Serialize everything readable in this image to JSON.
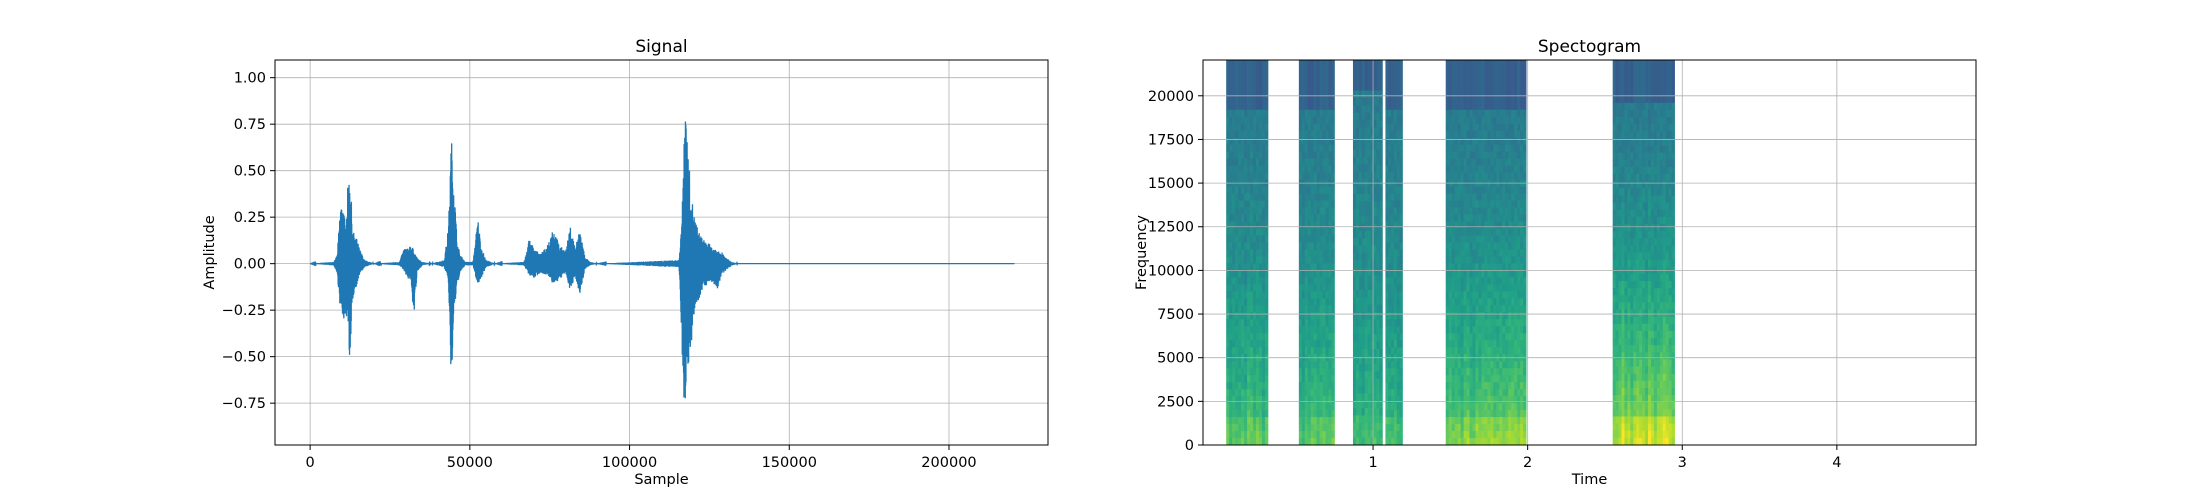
{
  "chart_data": [
    {
      "type": "line",
      "title": "Signal",
      "xlabel": "Sample",
      "ylabel": "Amplitude",
      "xlim": [
        -11000,
        231000
      ],
      "ylim": [
        -0.975,
        1.095
      ],
      "grid": true,
      "line_color": "#1f77b4",
      "x_ticks": [
        0,
        50000,
        100000,
        150000,
        200000
      ],
      "x_tick_labels": [
        "0",
        "50000",
        "100000",
        "150000",
        "200000"
      ],
      "y_ticks": [
        -0.75,
        -0.5,
        -0.25,
        0.0,
        0.25,
        0.5,
        0.75,
        1.0
      ],
      "y_tick_labels": [
        "−0.75",
        "−0.50",
        "−0.25",
        "0.00",
        "0.25",
        "0.50",
        "0.75",
        "1.00"
      ],
      "sample_range": [
        0,
        220500
      ],
      "envelope": [
        {
          "x": 0,
          "max": 0.0,
          "min": 0.0
        },
        {
          "x": 7500,
          "max": 0.01,
          "min": -0.01
        },
        {
          "x": 8500,
          "max": 0.05,
          "min": -0.06
        },
        {
          "x": 9500,
          "max": 0.33,
          "min": -0.26
        },
        {
          "x": 10300,
          "max": 0.32,
          "min": -0.32
        },
        {
          "x": 11000,
          "max": 0.2,
          "min": -0.28
        },
        {
          "x": 11800,
          "max": 0.42,
          "min": -0.3
        },
        {
          "x": 12500,
          "max": 0.5,
          "min": -0.57
        },
        {
          "x": 13300,
          "max": 0.18,
          "min": -0.2
        },
        {
          "x": 14500,
          "max": 0.14,
          "min": -0.12
        },
        {
          "x": 15500,
          "max": 0.08,
          "min": -0.06
        },
        {
          "x": 17000,
          "max": 0.02,
          "min": -0.02
        },
        {
          "x": 20000,
          "max": 0.0,
          "min": 0.0
        },
        {
          "x": 28000,
          "max": 0.01,
          "min": -0.01
        },
        {
          "x": 29500,
          "max": 0.09,
          "min": -0.04
        },
        {
          "x": 30500,
          "max": 0.08,
          "min": -0.08
        },
        {
          "x": 31500,
          "max": 0.11,
          "min": -0.09
        },
        {
          "x": 32500,
          "max": 0.07,
          "min": -0.29
        },
        {
          "x": 33500,
          "max": 0.03,
          "min": -0.05
        },
        {
          "x": 35000,
          "max": 0.01,
          "min": -0.01
        },
        {
          "x": 38000,
          "max": 0.0,
          "min": 0.0
        },
        {
          "x": 42000,
          "max": 0.02,
          "min": -0.02
        },
        {
          "x": 43300,
          "max": 0.2,
          "min": -0.1
        },
        {
          "x": 44200,
          "max": 0.69,
          "min": -0.69
        },
        {
          "x": 45000,
          "max": 0.46,
          "min": -0.29
        },
        {
          "x": 46000,
          "max": 0.12,
          "min": -0.12
        },
        {
          "x": 47000,
          "max": 0.05,
          "min": -0.05
        },
        {
          "x": 48500,
          "max": 0.01,
          "min": -0.01
        },
        {
          "x": 51000,
          "max": 0.01,
          "min": -0.01
        },
        {
          "x": 52500,
          "max": 0.25,
          "min": -0.12
        },
        {
          "x": 53500,
          "max": 0.1,
          "min": -0.08
        },
        {
          "x": 55000,
          "max": 0.02,
          "min": -0.02
        },
        {
          "x": 58000,
          "max": 0.0,
          "min": 0.0
        },
        {
          "x": 67000,
          "max": 0.01,
          "min": -0.01
        },
        {
          "x": 68500,
          "max": 0.13,
          "min": -0.06
        },
        {
          "x": 70000,
          "max": 0.09,
          "min": -0.08
        },
        {
          "x": 72000,
          "max": 0.05,
          "min": -0.05
        },
        {
          "x": 74000,
          "max": 0.09,
          "min": -0.06
        },
        {
          "x": 76000,
          "max": 0.2,
          "min": -0.11
        },
        {
          "x": 78000,
          "max": 0.1,
          "min": -0.09
        },
        {
          "x": 80000,
          "max": 0.07,
          "min": -0.05
        },
        {
          "x": 81500,
          "max": 0.2,
          "min": -0.15
        },
        {
          "x": 83000,
          "max": 0.09,
          "min": -0.07
        },
        {
          "x": 84500,
          "max": 0.19,
          "min": -0.17
        },
        {
          "x": 86000,
          "max": 0.04,
          "min": -0.03
        },
        {
          "x": 87500,
          "max": 0.01,
          "min": -0.01
        },
        {
          "x": 90000,
          "max": 0.0,
          "min": 0.0
        },
        {
          "x": 115500,
          "max": 0.02,
          "min": -0.02
        },
        {
          "x": 116500,
          "max": 0.3,
          "min": -0.5
        },
        {
          "x": 117400,
          "max": 1.0,
          "min": -0.88
        },
        {
          "x": 118200,
          "max": 0.62,
          "min": -0.6
        },
        {
          "x": 119000,
          "max": 0.45,
          "min": -0.5
        },
        {
          "x": 120000,
          "max": 0.28,
          "min": -0.3
        },
        {
          "x": 121500,
          "max": 0.18,
          "min": -0.2
        },
        {
          "x": 123000,
          "max": 0.13,
          "min": -0.13
        },
        {
          "x": 124500,
          "max": 0.12,
          "min": -0.11
        },
        {
          "x": 126000,
          "max": 0.08,
          "min": -0.1
        },
        {
          "x": 127500,
          "max": 0.07,
          "min": -0.14
        },
        {
          "x": 129000,
          "max": 0.06,
          "min": -0.06
        },
        {
          "x": 130500,
          "max": 0.03,
          "min": -0.03
        },
        {
          "x": 132000,
          "max": 0.01,
          "min": -0.01
        },
        {
          "x": 134000,
          "max": 0.0,
          "min": 0.0
        },
        {
          "x": 220500,
          "max": 0.0,
          "min": 0.0
        }
      ]
    },
    {
      "type": "heatmap",
      "title": "Spectogram",
      "xlabel": "Time",
      "ylabel": "Frequency",
      "xlim": [
        -0.1,
        4.9
      ],
      "ylim": [
        0,
        22050
      ],
      "grid": true,
      "colormap": "viridis",
      "x_ticks": [
        1,
        2,
        3,
        4
      ],
      "x_tick_labels": [
        "1",
        "2",
        "3",
        "4"
      ],
      "y_ticks": [
        0,
        2500,
        5000,
        7500,
        10000,
        12500,
        15000,
        17500,
        20000
      ],
      "y_tick_labels": [
        "0",
        "2500",
        "5000",
        "7500",
        "10000",
        "12500",
        "15000",
        "17500",
        "20000"
      ],
      "bands": [
        {
          "start": 0.05,
          "end": 0.32,
          "cutoff": 19200,
          "intensity": 0.65
        },
        {
          "start": 0.52,
          "end": 0.75,
          "cutoff": 19200,
          "intensity": 0.6
        },
        {
          "start": 0.87,
          "end": 1.06,
          "cutoff": 20300,
          "intensity": 0.5
        },
        {
          "start": 1.08,
          "end": 1.19,
          "cutoff": 19200,
          "intensity": 0.55
        },
        {
          "start": 1.47,
          "end": 1.99,
          "cutoff": 19200,
          "intensity": 0.75
        },
        {
          "start": 2.55,
          "end": 2.95,
          "cutoff": 19600,
          "intensity": 0.95
        }
      ]
    }
  ]
}
